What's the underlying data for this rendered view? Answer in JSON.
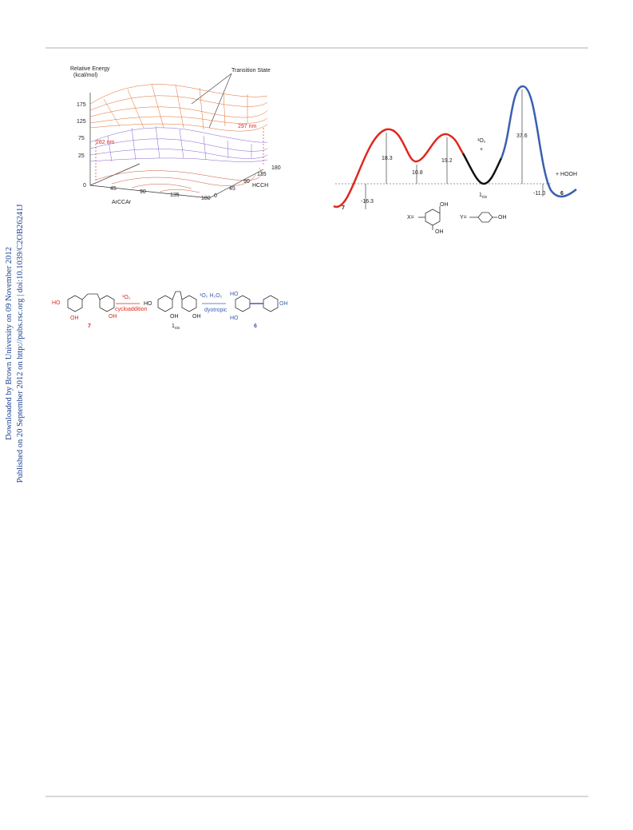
{
  "sidebar": {
    "downloaded": "Downloaded by Brown University on 09 November 2012",
    "published": "Published on 20 September 2012 on http://pubs.rsc.org | doi:10.1039/C2OB26241J"
  },
  "figure1": {
    "y_title": "Relative Energy",
    "y_unit": "(kcal/mol)",
    "annotation": "Transition State",
    "y_ticks": [
      "175",
      "125",
      "75",
      "25"
    ],
    "wavelength_left": "282 nm",
    "wavelength_right": "297 nm",
    "x_axis_label": "ArCCAr",
    "x_ticks": [
      "0",
      "45",
      "90",
      "135",
      "180"
    ],
    "z_axis_label": "HCCH",
    "z_ticks": [
      "180",
      "135",
      "90",
      "45",
      "0"
    ]
  },
  "figure2": {
    "barriers": [
      "18.3",
      "10.8",
      "19.2",
      "37.6"
    ],
    "energies": [
      "-16.3",
      "-11.0"
    ],
    "compound_left": "7",
    "compound_right": "6",
    "compound_middle": {
      "main": "1",
      "sub": "cis"
    },
    "reagent": "¹O₂",
    "plus": "+",
    "product_extra": "+ HOOH",
    "x_def": "X=",
    "y_def": "Y=",
    "oh": "OH"
  },
  "scheme": {
    "left_compound": "7",
    "middle_compound": {
      "main": "1",
      "sub": "cis"
    },
    "right_compound": "6",
    "left_reagent": "¹O₂",
    "left_reaction": "cycloaddition",
    "right_reagents": "¹O₂   H₂O₂",
    "right_reaction": "dyotropic",
    "ho": "HO",
    "oh": "OH"
  }
}
